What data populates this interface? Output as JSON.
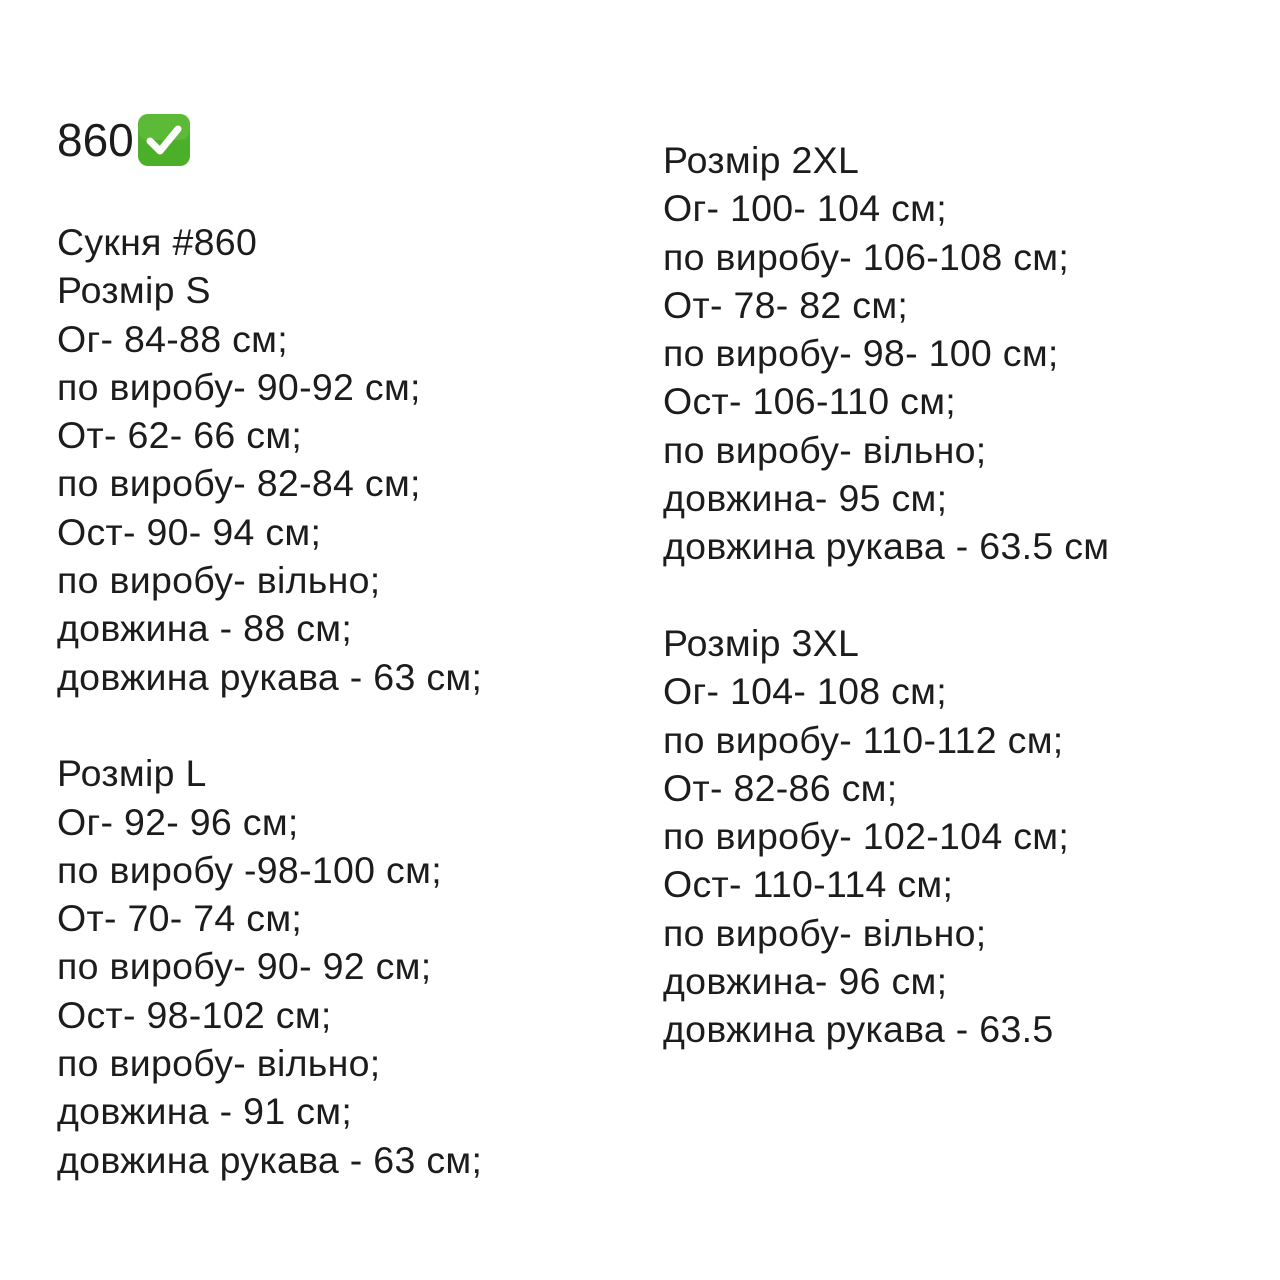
{
  "title": {
    "text": "860",
    "icon": "check-mark-button-emoji",
    "icon_color": "#4caf2a"
  },
  "left": {
    "header": "Сукня #860",
    "size_s": {
      "label": "Розмір S",
      "lines": [
        "Ог- 84-88 см;",
        "по виробу- 90-92 см;",
        "От- 62- 66 см;",
        "по виробу- 82-84 см;",
        "Ост- 90- 94 см;",
        "по виробу- вільно;",
        "довжина - 88 см;",
        "довжина рукава - 63 см;"
      ]
    },
    "size_l": {
      "label": "Розмір L",
      "lines": [
        "Ог- 92- 96 см;",
        "по виробу -98-100 см;",
        "От- 70- 74 см;",
        "по виробу- 90- 92 см;",
        "Ост- 98-102 см;",
        "по виробу- вільно;",
        "довжина - 91 см;",
        "довжина рукава - 63 см;"
      ]
    }
  },
  "right": {
    "size_2xl": {
      "label": "Розмір 2XL",
      "lines": [
        "Ог- 100- 104 см;",
        "по виробу- 106-108 см;",
        "От- 78- 82 см;",
        "по виробу- 98- 100 см;",
        "Ост- 106-110 см;",
        "по виробу- вільно;",
        "довжина- 95 см;",
        "довжина рукава - 63.5 см"
      ]
    },
    "size_3xl": {
      "label": "Розмір 3XL",
      "lines": [
        "Ог- 104- 108 см;",
        "по виробу- 110-112 см;",
        "От- 82-86 см;",
        "по виробу- 102-104 см;",
        "Ост- 110-114 см;",
        "по виробу- вільно;",
        "довжина- 96 см;",
        "довжина рукава - 63.5"
      ]
    }
  }
}
